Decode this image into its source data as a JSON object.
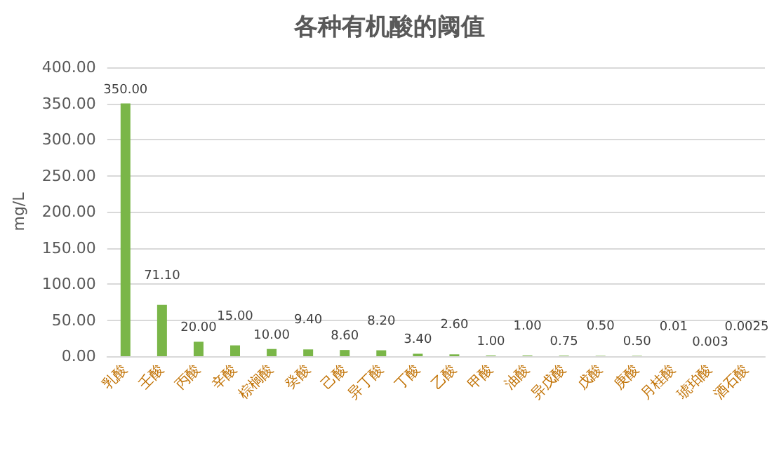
{
  "chart_data": {
    "type": "bar",
    "title": "各种有机酸的阈值",
    "ylabel": "mg/L",
    "categories": [
      "乳酸",
      "壬酸",
      "丙酸",
      "辛酸",
      "棕榈酸",
      "癸酸",
      "己酸",
      "异丁酸",
      "丁酸",
      "乙酸",
      "甲酸",
      "油酸",
      "异戊酸",
      "戊酸",
      "庚酸",
      "月桂酸",
      "琥珀酸",
      "酒石酸"
    ],
    "values": [
      350,
      71.1,
      20,
      15,
      10,
      9.4,
      8.6,
      8.2,
      3.4,
      2.6,
      1,
      1,
      0.75,
      0.5,
      0.5,
      0.01,
      0.003,
      0.0025
    ],
    "value_labels": [
      "350.00",
      "71.10",
      "20.00",
      "15.00",
      "10.00",
      "9.40",
      "8.60",
      "8.20",
      "3.40",
      "2.60",
      "1.00",
      "1.00",
      "0.75",
      "0.50",
      "0.50",
      "0.01",
      "0.003",
      "0.0025"
    ],
    "color": "#7ab648",
    "ylim": [
      0,
      400
    ],
    "yticks": [
      {
        "value": 0,
        "label": "0.00"
      },
      {
        "value": 50,
        "label": "50.00"
      },
      {
        "value": 100,
        "label": "100.00"
      },
      {
        "value": 150,
        "label": "150.00"
      },
      {
        "value": 200,
        "label": "200.00"
      },
      {
        "value": 250,
        "label": "250.00"
      },
      {
        "value": 300,
        "label": "300.00"
      },
      {
        "value": 350,
        "label": "350.00"
      },
      {
        "value": 400,
        "label": "400.00"
      }
    ],
    "grid": "y"
  }
}
